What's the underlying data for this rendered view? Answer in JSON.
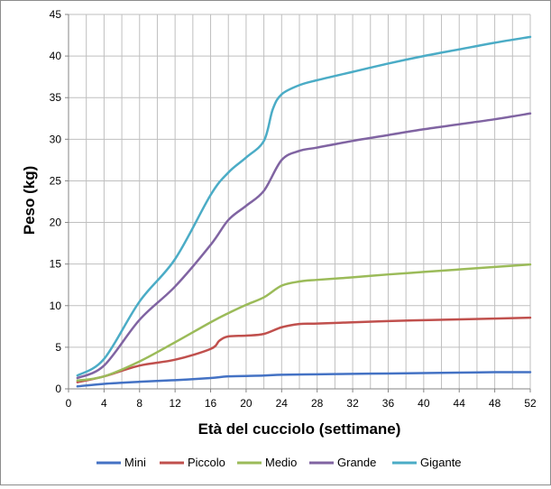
{
  "chart_data": {
    "type": "line",
    "title": "",
    "xlabel": "Età del cucciolo (settimane)",
    "ylabel": "Peso (kg)",
    "xlim": [
      0,
      52
    ],
    "ylim": [
      0,
      45
    ],
    "xticks": [
      0,
      4,
      8,
      12,
      16,
      20,
      24,
      28,
      32,
      36,
      40,
      44,
      48,
      52
    ],
    "yticks": [
      0,
      5,
      10,
      15,
      20,
      25,
      30,
      35,
      40,
      45
    ],
    "x_minor_grid_step": 2,
    "grid": true,
    "legend_position": "bottom",
    "series": [
      {
        "name": "Mini",
        "color": "#4472C4",
        "x": [
          1,
          4,
          8,
          12,
          16,
          18,
          22,
          24,
          28,
          32,
          36,
          40,
          44,
          48,
          52
        ],
        "values": [
          0.3,
          0.6,
          0.85,
          1.05,
          1.3,
          1.5,
          1.6,
          1.7,
          1.75,
          1.8,
          1.85,
          1.9,
          1.95,
          2.0,
          2.0
        ]
      },
      {
        "name": "Piccolo",
        "color": "#C0504D",
        "x": [
          1,
          4,
          8,
          12,
          16,
          17,
          18,
          20,
          22,
          24,
          26,
          28,
          32,
          36,
          40,
          44,
          48,
          52
        ],
        "values": [
          0.8,
          1.5,
          2.8,
          3.5,
          4.8,
          5.8,
          6.3,
          6.4,
          6.6,
          7.4,
          7.8,
          7.85,
          8.0,
          8.15,
          8.25,
          8.35,
          8.45,
          8.55
        ]
      },
      {
        "name": "Medio",
        "color": "#9BBB59",
        "x": [
          1,
          4,
          8,
          12,
          16,
          18,
          20,
          22,
          24,
          26,
          28,
          32,
          36,
          40,
          44,
          48,
          52
        ],
        "values": [
          1.0,
          1.5,
          3.3,
          5.6,
          8.0,
          9.1,
          10.1,
          11.0,
          12.4,
          12.9,
          13.1,
          13.4,
          13.75,
          14.05,
          14.35,
          14.65,
          14.95
        ]
      },
      {
        "name": "Grande",
        "color": "#8064A2",
        "x": [
          1,
          4,
          8,
          12,
          16,
          18,
          20,
          22,
          24,
          26,
          28,
          32,
          36,
          40,
          44,
          48,
          52
        ],
        "values": [
          1.3,
          2.8,
          8.3,
          12.3,
          17.3,
          20.3,
          22.0,
          23.8,
          27.5,
          28.6,
          29.0,
          29.8,
          30.5,
          31.2,
          31.8,
          32.4,
          33.1
        ]
      },
      {
        "name": "Gigante",
        "color": "#4BACC6",
        "x": [
          1,
          4,
          8,
          12,
          16,
          18,
          20,
          22,
          23,
          24,
          26,
          28,
          32,
          36,
          40,
          44,
          48,
          52
        ],
        "values": [
          1.6,
          3.6,
          10.5,
          15.6,
          23.3,
          26.0,
          27.8,
          29.8,
          33.6,
          35.4,
          36.5,
          37.1,
          38.1,
          39.1,
          40.0,
          40.8,
          41.6,
          42.3
        ]
      }
    ]
  }
}
